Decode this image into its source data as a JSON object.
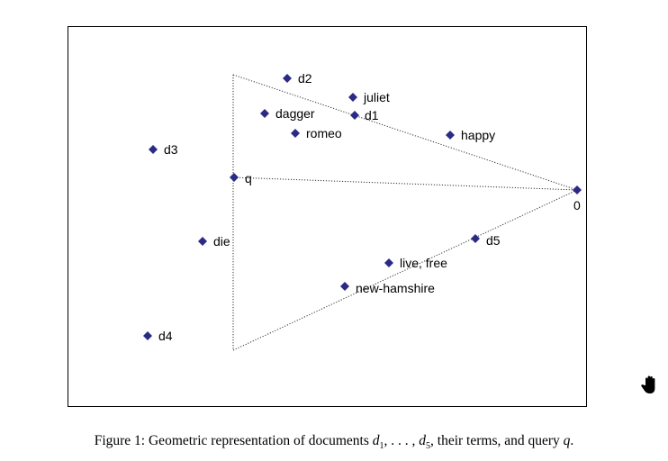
{
  "points": [
    {
      "id": "d2",
      "label": "d2"
    },
    {
      "id": "juliet",
      "label": "juliet"
    },
    {
      "id": "dagger",
      "label": "dagger"
    },
    {
      "id": "d1",
      "label": "d1"
    },
    {
      "id": "romeo",
      "label": "romeo"
    },
    {
      "id": "happy",
      "label": "happy"
    },
    {
      "id": "d3",
      "label": "d3"
    },
    {
      "id": "q",
      "label": "q"
    },
    {
      "id": "origin",
      "label": "0"
    },
    {
      "id": "die",
      "label": "die"
    },
    {
      "id": "d5",
      "label": "d5"
    },
    {
      "id": "live-free",
      "label": "live, free"
    },
    {
      "id": "new-hamshire",
      "label": "new-hamshire"
    },
    {
      "id": "d4",
      "label": "d4"
    }
  ],
  "edges": [
    {
      "from": "d2-corner",
      "to": "origin"
    },
    {
      "from": "q",
      "to": "origin"
    },
    {
      "from": "d4-corner",
      "to": "origin"
    },
    {
      "from": "d2-corner",
      "to": "d4-corner"
    }
  ],
  "caption": {
    "prefix": "Figure 1: Geometric representation of documents ",
    "d": "d",
    "sub1": "1",
    "mid": ", . . . , ",
    "sub5": "5",
    "suffix": ", their terms, and query ",
    "q": "q",
    "end": "."
  },
  "colors": {
    "marker": "#2b2b86",
    "frame": "#000000",
    "line": "#333333"
  },
  "icons": {
    "cursor": "hand-cursor-icon"
  }
}
